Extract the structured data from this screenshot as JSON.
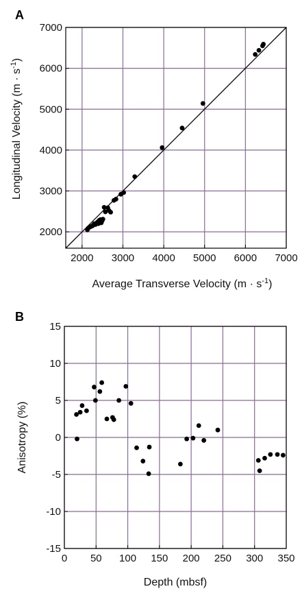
{
  "chart_data": [
    {
      "panel_label": "A",
      "type": "scatter",
      "xlabel": "Average Transverse Velocity (m · s",
      "xlabel_sup": "-1",
      "xlabel_end": ")",
      "ylabel": "Longitudinal Velocity (m · s",
      "ylabel_sup": "-1",
      "ylabel_end": ")",
      "xlim": [
        1600,
        7000
      ],
      "ylim": [
        1600,
        7000
      ],
      "xticks": [
        "2000",
        "3000",
        "4000",
        "5000",
        "6000",
        "7000"
      ],
      "yticks": [
        "2000",
        "3000",
        "4000",
        "5000",
        "6000",
        "7000"
      ],
      "grid": true,
      "reference_line": [
        [
          1600,
          1600
        ],
        [
          7000,
          7000
        ]
      ],
      "colors": {
        "grid": "#8a6a99",
        "points": "#000000",
        "axes": "#000000"
      },
      "points": [
        [
          2130,
          2050
        ],
        [
          2150,
          2090
        ],
        [
          2180,
          2110
        ],
        [
          2220,
          2130
        ],
        [
          2260,
          2150
        ],
        [
          2280,
          2170
        ],
        [
          2300,
          2200
        ],
        [
          2330,
          2180
        ],
        [
          2350,
          2210
        ],
        [
          2370,
          2230
        ],
        [
          2390,
          2250
        ],
        [
          2400,
          2200
        ],
        [
          2420,
          2280
        ],
        [
          2430,
          2240
        ],
        [
          2450,
          2300
        ],
        [
          2470,
          2220
        ],
        [
          2490,
          2270
        ],
        [
          2510,
          2310
        ],
        [
          2540,
          2600
        ],
        [
          2570,
          2490
        ],
        [
          2630,
          2590
        ],
        [
          2660,
          2520
        ],
        [
          2700,
          2480
        ],
        [
          2780,
          2770
        ],
        [
          2830,
          2800
        ],
        [
          2950,
          2920
        ],
        [
          3020,
          2960
        ],
        [
          3290,
          3350
        ],
        [
          3960,
          4060
        ],
        [
          4450,
          4540
        ],
        [
          4960,
          5140
        ],
        [
          6240,
          6340
        ],
        [
          6330,
          6440
        ],
        [
          6420,
          6550
        ],
        [
          6440,
          6590
        ]
      ]
    },
    {
      "panel_label": "B",
      "type": "scatter",
      "xlabel": "Depth (mbsf)",
      "ylabel": "Anisotropy  (%)",
      "xlim": [
        0,
        350
      ],
      "ylim": [
        -15,
        15
      ],
      "xticks": [
        "0",
        "50",
        "100",
        "150",
        "200",
        "250",
        "300",
        "350"
      ],
      "yticks": [
        "15",
        "10",
        "5",
        "0",
        "-5",
        "-10",
        "-15"
      ],
      "grid": true,
      "colors": {
        "grid": "#8a6a99",
        "points": "#000000",
        "axes": "#000000"
      },
      "points": [
        [
          19,
          3.1
        ],
        [
          20,
          -0.2
        ],
        [
          25,
          3.4
        ],
        [
          28,
          4.3
        ],
        [
          35,
          3.6
        ],
        [
          47,
          6.8
        ],
        [
          49,
          5.0
        ],
        [
          56,
          6.2
        ],
        [
          59,
          7.4
        ],
        [
          67,
          2.5
        ],
        [
          76,
          2.7
        ],
        [
          78,
          2.4
        ],
        [
          86,
          5.0
        ],
        [
          97,
          6.9
        ],
        [
          105,
          4.6
        ],
        [
          114,
          -1.4
        ],
        [
          124,
          -3.2
        ],
        [
          133,
          -4.9
        ],
        [
          134,
          -1.3
        ],
        [
          183,
          -3.6
        ],
        [
          193,
          -0.2
        ],
        [
          203,
          -0.1
        ],
        [
          212,
          1.6
        ],
        [
          220,
          -0.4
        ],
        [
          242,
          1.0
        ],
        [
          306,
          -3.1
        ],
        [
          308,
          -4.5
        ],
        [
          316,
          -2.8
        ],
        [
          325,
          -2.3
        ],
        [
          336,
          -2.3
        ],
        [
          345,
          -2.4
        ]
      ]
    }
  ]
}
